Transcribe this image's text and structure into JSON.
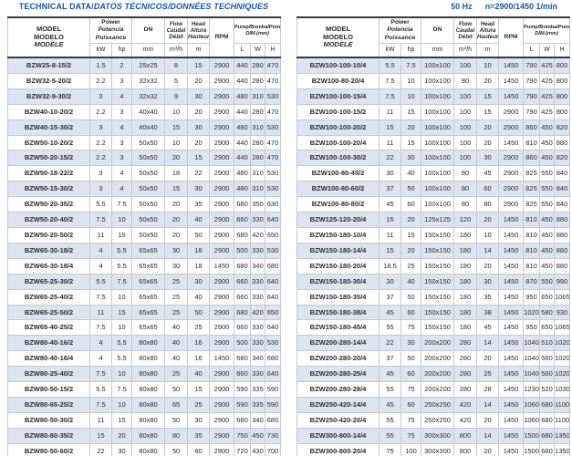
{
  "title": {
    "en": "TECHNICAL DATA/",
    "translations": "DATOS TÉCNICOS/DONNÉES TECHNIQUES"
  },
  "frequency": {
    "hz": "50 Hz",
    "speed": "n=2900/1450 1/min"
  },
  "header": {
    "model": [
      "MODEL",
      "MODELO",
      "MODÈLE"
    ],
    "power_label": "Power",
    "power_sub": [
      "Potencia",
      "Puissance"
    ],
    "dn_label": "DN",
    "flow_label": "Flow",
    "flow_sub": [
      "Caudal",
      "Débit"
    ],
    "head_label": "Head",
    "head_sub": [
      "Altura",
      "Hauteur"
    ],
    "rpm_label": "RPM",
    "dim_label": "Pump/Bomba/Pompe",
    "dim_sub": "DIM.(mm)",
    "units": {
      "kw": "kW",
      "hp": "hp",
      "mm": "mm",
      "flow": "m³/h",
      "head": "m",
      "l": "L",
      "w": "W",
      "h": "H"
    }
  },
  "colors": {
    "accent_blue": "#1558a0",
    "stripe": "#dde4ef",
    "grid": "#c0c9d6",
    "rule": "#3a3a3a"
  },
  "left_table_rows": [
    [
      "BZW25-8-15/2",
      "1.5",
      "2",
      "25x25",
      "8",
      "15",
      "2900",
      "440",
      "280",
      "470"
    ],
    [
      "BZW32-5-20/2",
      "2.2",
      "3",
      "32x32",
      "5",
      "20",
      "2900",
      "440",
      "280",
      "470"
    ],
    [
      "BZW32-9-30/2",
      "3",
      "4",
      "32x32",
      "9",
      "30",
      "2900",
      "480",
      "310",
      "530"
    ],
    [
      "BZW40-10-20/2",
      "2.2",
      "3",
      "40x40",
      "10",
      "20",
      "2900",
      "440",
      "280",
      "470"
    ],
    [
      "BZW40-15-30/2",
      "3",
      "4",
      "40x40",
      "15",
      "30",
      "2900",
      "480",
      "310",
      "530"
    ],
    [
      "BZW50-10-20/2",
      "2.2",
      "3",
      "50x50",
      "10",
      "20",
      "2900",
      "440",
      "280",
      "470"
    ],
    [
      "BZW50-20-15/2",
      "2.2",
      "3",
      "50x50",
      "20",
      "15",
      "2900",
      "440",
      "280",
      "470"
    ],
    [
      "BZW50-18-22/2",
      "3",
      "4",
      "50x50",
      "18",
      "22",
      "2900",
      "480",
      "310",
      "530"
    ],
    [
      "BZW50-15-30/2",
      "3",
      "4",
      "50x50",
      "15",
      "30",
      "2900",
      "480",
      "310",
      "530"
    ],
    [
      "BZW50-20-35/2",
      "5.5",
      "7.5",
      "50x50",
      "20",
      "35",
      "2900",
      "680",
      "350",
      "630"
    ],
    [
      "BZW50-20-40/2",
      "7.5",
      "10",
      "50x50",
      "20",
      "40",
      "2900",
      "660",
      "330",
      "640"
    ],
    [
      "BZW50-20-50/2",
      "11",
      "15",
      "50x50",
      "20",
      "50",
      "2900",
      "680",
      "420",
      "650"
    ],
    [
      "BZW65-30-18/2",
      "4",
      "5.5",
      "65x65",
      "30",
      "18",
      "2900",
      "500",
      "330",
      "530"
    ],
    [
      "BZW65-30-18/4",
      "4",
      "5.5",
      "65x65",
      "30",
      "18",
      "1450",
      "680",
      "340",
      "680"
    ],
    [
      "BZW65-25-30/2",
      "5.5",
      "7.5",
      "65x65",
      "25",
      "30",
      "2900",
      "660",
      "330",
      "640"
    ],
    [
      "BZW65-25-40/2",
      "7.5",
      "10",
      "65x65",
      "25",
      "40",
      "2900",
      "660",
      "330",
      "640"
    ],
    [
      "BZW65-25-50/2",
      "11",
      "15",
      "65x65",
      "25",
      "50",
      "2900",
      "680",
      "420",
      "650"
    ],
    [
      "BZW65-40-25/2",
      "7.5",
      "10",
      "65x65",
      "40",
      "25",
      "2900",
      "660",
      "330",
      "640"
    ],
    [
      "BZW80-40-16/2",
      "4",
      "5.5",
      "80x80",
      "40",
      "16",
      "2900",
      "500",
      "330",
      "530"
    ],
    [
      "BZW80-40-16/4",
      "4",
      "5.5",
      "80x80",
      "40",
      "16",
      "1450",
      "680",
      "340",
      "680"
    ],
    [
      "BZW80-25-40/2",
      "7.5",
      "10",
      "80x80",
      "25",
      "40",
      "2900",
      "660",
      "330",
      "640"
    ],
    [
      "BZW80-50-15/2",
      "5.5",
      "7.5",
      "80x80",
      "50",
      "15",
      "2900",
      "590",
      "335",
      "590"
    ],
    [
      "BZW80-65-25/2",
      "7.5",
      "10",
      "80x80",
      "65",
      "25",
      "2900",
      "590",
      "335",
      "590"
    ],
    [
      "BZW80-50-30/2",
      "11",
      "15",
      "80x80",
      "50",
      "30",
      "2900",
      "680",
      "340",
      "680"
    ],
    [
      "BZW80-80-35/2",
      "15",
      "20",
      "80x80",
      "80",
      "35",
      "2900",
      "750",
      "450",
      "730"
    ],
    [
      "BZW80-50-60/2",
      "22",
      "30",
      "80x80",
      "50",
      "60",
      "2900",
      "720",
      "430",
      "700"
    ]
  ],
  "right_table_rows": [
    [
      "BZW100-100-10/4",
      "5.5",
      "7.5",
      "100x100",
      "100",
      "10",
      "1450",
      "790",
      "425",
      "800"
    ],
    [
      "BZW100-80-20/4",
      "7.5",
      "10",
      "100x100",
      "80",
      "20",
      "1450",
      "790",
      "425",
      "800"
    ],
    [
      "BZW100-100-15/4",
      "7.5",
      "10",
      "100x100",
      "100",
      "15",
      "1450",
      "790",
      "425",
      "800"
    ],
    [
      "BZW100-100-15/2",
      "11",
      "15",
      "100x100",
      "100",
      "15",
      "2900",
      "790",
      "425",
      "800"
    ],
    [
      "BZW100-100-20/2",
      "15",
      "20",
      "100x100",
      "100",
      "20",
      "2900",
      "860",
      "450",
      "820"
    ],
    [
      "BZW100-100-20/4",
      "11",
      "15",
      "100x100",
      "100",
      "20",
      "1450",
      "810",
      "450",
      "880"
    ],
    [
      "BZW100-100-30/2",
      "22",
      "30",
      "100x100",
      "100",
      "30",
      "2900",
      "860",
      "450",
      "820"
    ],
    [
      "BZW100-80-45/2",
      "30",
      "40",
      "100x100",
      "80",
      "45",
      "2900",
      "825",
      "550",
      "840"
    ],
    [
      "BZW100-80-60/2",
      "37",
      "50",
      "100x100",
      "80",
      "60",
      "2900",
      "825",
      "550",
      "840"
    ],
    [
      "BZW100-80-80/2",
      "45",
      "60",
      "100x100",
      "80",
      "80",
      "2900",
      "825",
      "550",
      "840"
    ],
    [
      "BZW125-120-20/4",
      "15",
      "20",
      "125x125",
      "120",
      "20",
      "1450",
      "810",
      "450",
      "880"
    ],
    [
      "BZW150-180-10/4",
      "11",
      "15",
      "150x150",
      "180",
      "10",
      "1450",
      "810",
      "450",
      "880"
    ],
    [
      "BZW150-180-14/4",
      "15",
      "20",
      "150x150",
      "180",
      "14",
      "1450",
      "810",
      "450",
      "880"
    ],
    [
      "BZW150-180-20/4",
      "18.5",
      "25",
      "150x150",
      "180",
      "20",
      "1450",
      "810",
      "450",
      "880"
    ],
    [
      "BZW150-180-30/4",
      "30",
      "40",
      "150x150",
      "180",
      "30",
      "1450",
      "870",
      "550",
      "990"
    ],
    [
      "BZW150-180-35/4",
      "37",
      "50",
      "150x150",
      "180",
      "35",
      "1450",
      "950",
      "650",
      "1065"
    ],
    [
      "BZW150-180-38/4",
      "45",
      "60",
      "150x150",
      "180",
      "38",
      "1450",
      "1020",
      "580",
      "930"
    ],
    [
      "BZW150-180-45/4",
      "55",
      "75",
      "150x150",
      "180",
      "45",
      "1450",
      "950",
      "650",
      "1065"
    ],
    [
      "BZW200-280-14/4",
      "22",
      "30",
      "200x200",
      "280",
      "14",
      "1450",
      "1040",
      "510",
      "1020"
    ],
    [
      "BZW200-280-20/4",
      "37",
      "50",
      "200x200",
      "280",
      "20",
      "1450",
      "1040",
      "560",
      "1020"
    ],
    [
      "BZW200-280-25/4",
      "45",
      "60",
      "200x200",
      "280",
      "25",
      "1450",
      "1040",
      "560",
      "1020"
    ],
    [
      "BZW200-280-28/4",
      "55",
      "75",
      "200x200",
      "280",
      "28",
      "1450",
      "1230",
      "520",
      "1030"
    ],
    [
      "BZW250-420-14/4",
      "45",
      "60",
      "250x250",
      "420",
      "14",
      "1450",
      "1060",
      "680",
      "1100"
    ],
    [
      "BZW250-420-20/4",
      "55",
      "75",
      "250x250",
      "420",
      "20",
      "1450",
      "1060",
      "680",
      "1100"
    ],
    [
      "BZW300-800-14/4",
      "55",
      "75",
      "300x300",
      "800",
      "14",
      "1450",
      "1500",
      "680",
      "1350"
    ],
    [
      "BZW300-800-20/4",
      "75",
      "100",
      "300x300",
      "800",
      "20",
      "1450",
      "1500",
      "680",
      "1350"
    ]
  ]
}
